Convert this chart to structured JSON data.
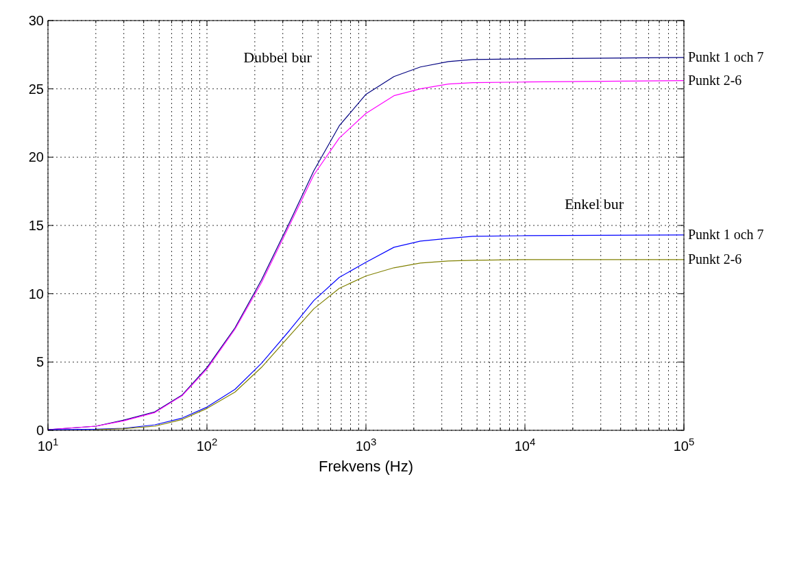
{
  "chart_data": {
    "type": "line",
    "xlabel": "Frekvens (Hz)",
    "log": "x",
    "grid": true,
    "marker": "none",
    "line_style": "solid",
    "xlim": [
      10,
      100000
    ],
    "ylim": [
      0,
      30
    ],
    "xticks": [
      {
        "value": 10,
        "label": "10$^{1}$"
      },
      {
        "value": 20,
        "label": null
      },
      {
        "value": 30,
        "label": null
      },
      {
        "value": 40,
        "label": null
      },
      {
        "value": 50,
        "label": null
      },
      {
        "value": 60,
        "label": null
      },
      {
        "value": 70,
        "label": null
      },
      {
        "value": 80,
        "label": null
      },
      {
        "value": 90,
        "label": null
      },
      {
        "value": 100,
        "label": "10$^{2}$"
      },
      {
        "value": 200,
        "label": null
      },
      {
        "value": 300,
        "label": null
      },
      {
        "value": 400,
        "label": null
      },
      {
        "value": 500,
        "label": null
      },
      {
        "value": 600,
        "label": null
      },
      {
        "value": 700,
        "label": null
      },
      {
        "value": 800,
        "label": null
      },
      {
        "value": 900,
        "label": null
      },
      {
        "value": 1000,
        "label": "10$^{3}$"
      },
      {
        "value": 2000,
        "label": null
      },
      {
        "value": 3000,
        "label": null
      },
      {
        "value": 4000,
        "label": null
      },
      {
        "value": 5000,
        "label": null
      },
      {
        "value": 6000,
        "label": null
      },
      {
        "value": 7000,
        "label": null
      },
      {
        "value": 8000,
        "label": null
      },
      {
        "value": 9000,
        "label": null
      },
      {
        "value": 10000,
        "label": "10$^{4}$"
      },
      {
        "value": 20000,
        "label": null
      },
      {
        "value": 30000,
        "label": null
      },
      {
        "value": 40000,
        "label": null
      },
      {
        "value": 50000,
        "label": null
      },
      {
        "value": 60000,
        "label": null
      },
      {
        "value": 70000,
        "label": null
      },
      {
        "value": 80000,
        "label": null
      },
      {
        "value": 90000,
        "label": null
      },
      {
        "value": 100000,
        "label": "10$^{5}$"
      }
    ],
    "yticks": [
      0,
      5,
      10,
      15,
      20,
      25,
      30
    ],
    "x": [
      10,
      20,
      30,
      47,
      70,
      100,
      150,
      220,
      330,
      470,
      680,
      1000,
      1500,
      2200,
      3300,
      4700,
      10000,
      100000
    ],
    "series": [
      {
        "name": "Punkt 1 och 7",
        "color": "#000080",
        "values": [
          0.05,
          0.3,
          0.75,
          1.35,
          2.6,
          4.6,
          7.5,
          11,
          15.2,
          19,
          22.3,
          24.6,
          25.9,
          26.6,
          27,
          27.15,
          27.2,
          27.3
        ]
      },
      {
        "name": "Punkt 2-6",
        "color": "#ff00ff",
        "values": [
          0.05,
          0.3,
          0.7,
          1.3,
          2.55,
          4.5,
          7.4,
          10.8,
          15,
          18.7,
          21.4,
          23.2,
          24.5,
          25,
          25.35,
          25.45,
          25.5,
          25.6
        ]
      },
      {
        "name": "Punkt 1 och 7",
        "color": "#0000ff",
        "values": [
          0.04,
          0.08,
          0.15,
          0.4,
          0.9,
          1.7,
          3,
          4.9,
          7.3,
          9.5,
          11.2,
          12.3,
          13.4,
          13.85,
          14.05,
          14.2,
          14.25,
          14.3
        ]
      },
      {
        "name": "Punkt 2-6",
        "color": "#808000",
        "values": [
          null,
          0.05,
          0.12,
          0.3,
          0.8,
          1.6,
          2.8,
          4.6,
          6.9,
          8.9,
          10.4,
          11.3,
          11.9,
          12.25,
          12.4,
          12.45,
          12.5,
          12.5
        ]
      }
    ],
    "annotations": [
      "Dubbel bur",
      "Enkel bur"
    ]
  }
}
